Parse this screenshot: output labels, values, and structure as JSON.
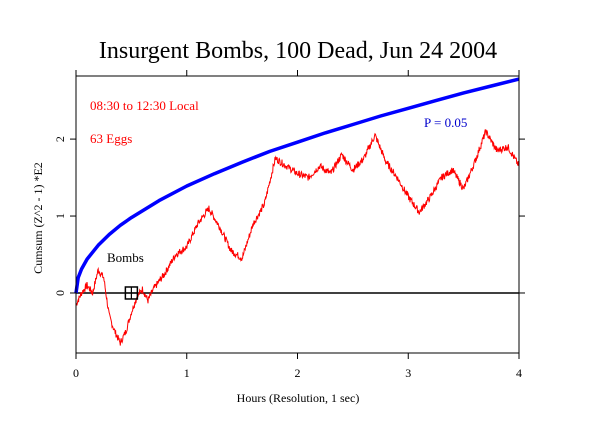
{
  "chart_data": {
    "type": "line",
    "title": "Insurgent Bombs, 100 Dead, Jun 24 2004",
    "xlabel": "Hours (Resolution, 1 sec)",
    "ylabel": "Cumsum (Z^2 - 1) *E2",
    "xlim": [
      0,
      4
    ],
    "ylim": [
      -0.78,
      2.82
    ],
    "x_ticks": [
      0,
      1,
      2,
      3,
      4
    ],
    "x_tick_labels": [
      "0",
      "1",
      "2",
      "3",
      "4"
    ],
    "y_ticks": [
      0,
      1,
      2
    ],
    "y_tick_labels": [
      "0",
      "1",
      "2"
    ],
    "grid": false,
    "annotations": {
      "time_range": "08:30 to 12:30 Local",
      "eggs": "63 Eggs",
      "p_label": "P = 0.05",
      "event_label": "Bombs",
      "event_x": 0.5,
      "event_y": 0
    },
    "colors": {
      "cumsum": "#ff0000",
      "p_curve": "#0000ff",
      "baseline": "#000000",
      "axes": "#000000"
    },
    "series": [
      {
        "values_x": [
          0,
          0.05,
          0.1,
          0.15,
          0.2,
          0.25,
          0.3,
          0.35,
          0.4,
          0.45,
          0.5,
          0.55,
          0.6,
          0.65,
          0.7,
          0.75,
          0.8,
          0.9,
          1.0,
          1.1,
          1.2,
          1.3,
          1.4,
          1.5,
          1.6,
          1.7,
          1.8,
          1.9,
          2.0,
          2.1,
          2.2,
          2.3,
          2.4,
          2.5,
          2.6,
          2.7,
          2.8,
          2.9,
          3.0,
          3.1,
          3.2,
          3.3,
          3.4,
          3.5,
          3.6,
          3.7,
          3.8,
          3.9,
          4.0
        ],
        "values_y": [
          -0.15,
          0.0,
          0.1,
          0.0,
          0.3,
          0.2,
          -0.3,
          -0.5,
          -0.65,
          -0.5,
          -0.25,
          -0.05,
          0.05,
          -0.1,
          0.05,
          0.15,
          0.25,
          0.5,
          0.6,
          0.9,
          1.1,
          0.85,
          0.55,
          0.45,
          0.9,
          1.15,
          1.75,
          1.65,
          1.55,
          1.5,
          1.65,
          1.55,
          1.8,
          1.6,
          1.75,
          2.05,
          1.7,
          1.5,
          1.25,
          1.05,
          1.25,
          1.5,
          1.6,
          1.35,
          1.7,
          2.1,
          1.85,
          1.9,
          1.65
        ]
      },
      {
        "name": "P = 0.05",
        "values_x": [
          0,
          0.02,
          0.05,
          0.1,
          0.2,
          0.3,
          0.4,
          0.5,
          0.75,
          1.0,
          1.25,
          1.5,
          1.75,
          2.0,
          2.25,
          2.5,
          2.75,
          3.0,
          3.25,
          3.5,
          3.75,
          4.0
        ],
        "values_y": [
          0,
          0.2,
          0.31,
          0.44,
          0.62,
          0.76,
          0.88,
          0.98,
          1.2,
          1.39,
          1.55,
          1.7,
          1.84,
          1.96,
          2.08,
          2.19,
          2.3,
          2.4,
          2.5,
          2.6,
          2.69,
          2.78
        ]
      }
    ]
  }
}
